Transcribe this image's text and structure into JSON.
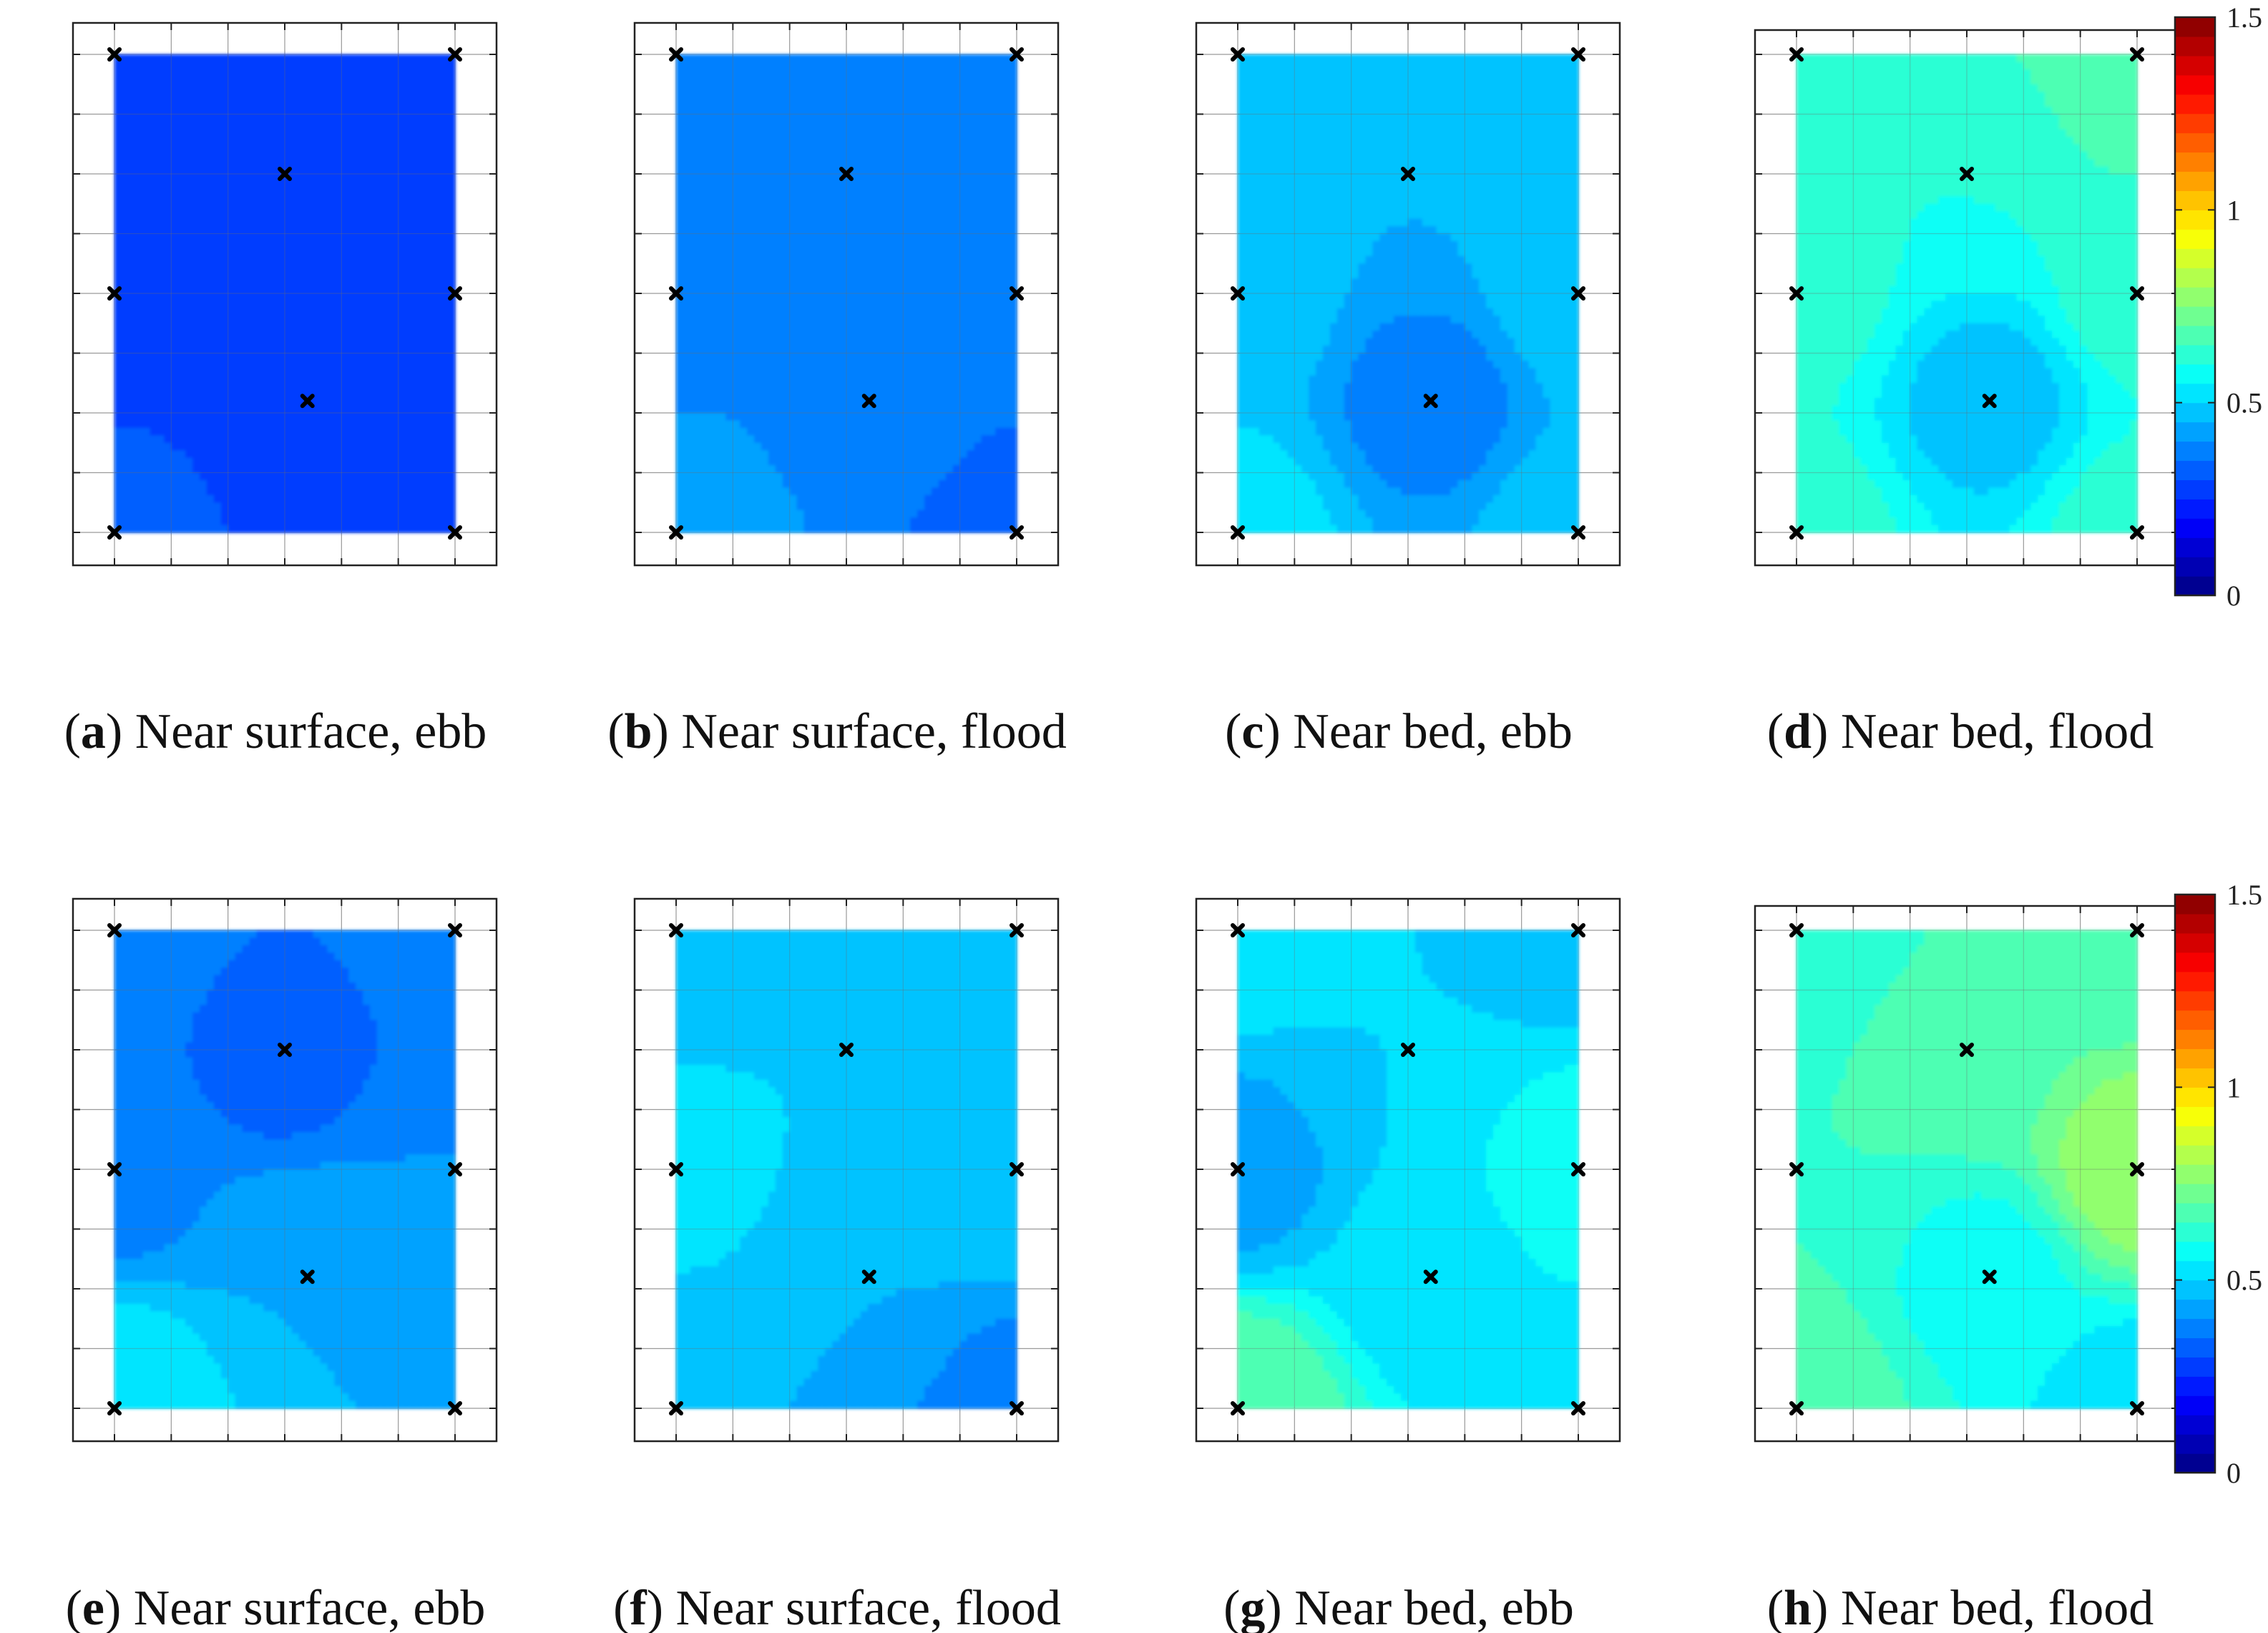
{
  "chart_data": {
    "type": "heatmap",
    "description_units": "same colour scale for all panels",
    "colorbar": {
      "min": 0,
      "max": 1.5,
      "tick_labels": [
        "0",
        "0.5",
        "1",
        "1.5"
      ],
      "tick_values": [
        0,
        0.5,
        1,
        1.5
      ],
      "levels": 30,
      "colormap": "jet"
    },
    "sample_points": {
      "note": "plan-view locations in panel grid units (x 0-6 columns, y 0-8 rows, y down)",
      "points": [
        {
          "x": 0,
          "y": 0
        },
        {
          "x": 6,
          "y": 0
        },
        {
          "x": 3,
          "y": 2
        },
        {
          "x": 0,
          "y": 4
        },
        {
          "x": 6,
          "y": 4
        },
        {
          "x": 3.4,
          "y": 5.8
        },
        {
          "x": 0,
          "y": 8
        },
        {
          "x": 6,
          "y": 8
        }
      ]
    },
    "panels": [
      {
        "letter": "a",
        "label": "Near surface, ebb",
        "values": [
          0.28,
          0.28,
          0.28,
          0.28,
          0.28,
          0.28,
          0.31,
          0.28
        ]
      },
      {
        "letter": "b",
        "label": "Near surface, flood",
        "values": [
          0.38,
          0.38,
          0.38,
          0.38,
          0.38,
          0.38,
          0.43,
          0.33
        ]
      },
      {
        "letter": "c",
        "label": "Near bed, ebb",
        "values": [
          0.48,
          0.48,
          0.45,
          0.48,
          0.48,
          0.38,
          0.52,
          0.48
        ]
      },
      {
        "letter": "d",
        "label": "Near bed, flood",
        "values": [
          0.62,
          0.7,
          0.6,
          0.62,
          0.62,
          0.48,
          0.62,
          0.62
        ]
      },
      {
        "letter": "e",
        "label": "Near surface, ebb",
        "values": [
          0.38,
          0.38,
          0.33,
          0.38,
          0.4,
          0.45,
          0.55,
          0.45
        ]
      },
      {
        "letter": "f",
        "label": "Near surface, flood",
        "values": [
          0.45,
          0.5,
          0.5,
          0.52,
          0.5,
          0.45,
          0.45,
          0.38
        ]
      },
      {
        "letter": "g",
        "label": "Near bed, ebb",
        "values": [
          0.52,
          0.48,
          0.5,
          0.43,
          0.58,
          0.52,
          0.7,
          0.52
        ]
      },
      {
        "letter": "h",
        "label": "Near bed, flood",
        "values": [
          0.6,
          0.65,
          0.68,
          0.65,
          0.78,
          0.58,
          0.68,
          0.52
        ]
      }
    ]
  }
}
